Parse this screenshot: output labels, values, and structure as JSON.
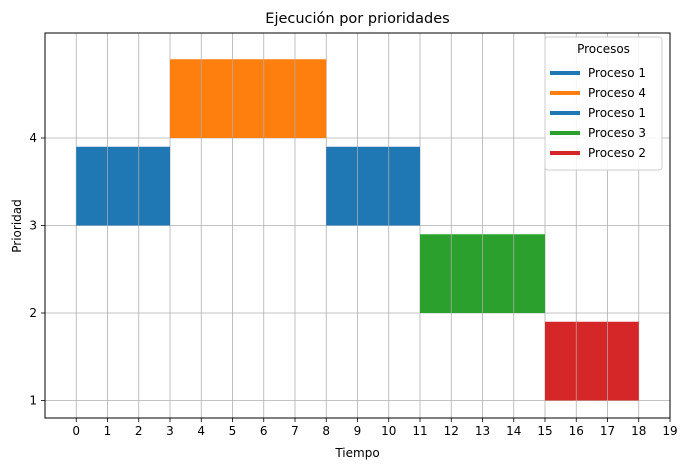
{
  "chart_data": {
    "type": "bar",
    "subtype": "gantt",
    "title": "Ejecución por prioridades",
    "xlabel": "Tiempo",
    "ylabel": "Prioridad",
    "xlim": [
      -1,
      19
    ],
    "ylim": [
      0.8,
      5.2
    ],
    "xticks": [
      0,
      1,
      2,
      3,
      4,
      5,
      6,
      7,
      8,
      9,
      10,
      11,
      12,
      13,
      14,
      15,
      16,
      17,
      18,
      19
    ],
    "yticks": [
      1,
      2,
      3,
      4
    ],
    "grid": true,
    "legend": {
      "title": "Procesos",
      "placement": "top-right"
    },
    "series": [
      {
        "name": "Proceso 1",
        "start": 0,
        "end": 3,
        "priority": 3,
        "color": "#1f77b4"
      },
      {
        "name": "Proceso 4",
        "start": 3,
        "end": 8,
        "priority": 4,
        "color": "#ff7f0e"
      },
      {
        "name": "Proceso 1",
        "start": 8,
        "end": 11,
        "priority": 3,
        "color": "#1f77b4"
      },
      {
        "name": "Proceso 3",
        "start": 11,
        "end": 15,
        "priority": 2,
        "color": "#2ca02c"
      },
      {
        "name": "Proceso 2",
        "start": 15,
        "end": 18,
        "priority": 1,
        "color": "#d62728"
      }
    ]
  }
}
